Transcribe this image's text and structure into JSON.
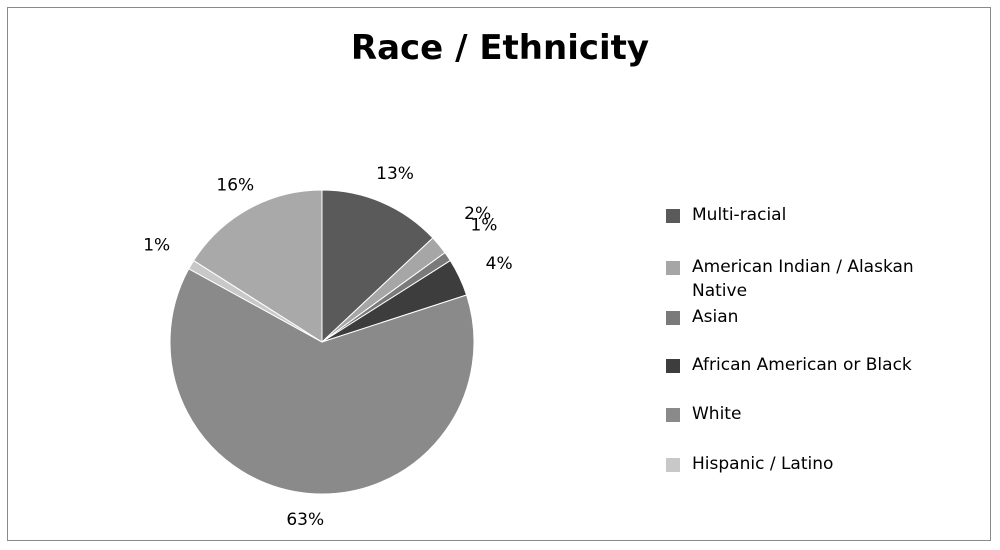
{
  "chart_data": {
    "type": "pie",
    "title": "Race / Ethnicity",
    "slices": [
      {
        "name": "Multi-racial",
        "value": 13,
        "label": "13%",
        "color": "#5a5a5a"
      },
      {
        "name": "American Indian / Alaskan Native",
        "value": 2,
        "label": "2%",
        "color": "#a6a6a6"
      },
      {
        "name": "Asian",
        "value": 1,
        "label": "1%",
        "color": "#7a7a7a"
      },
      {
        "name": "African American or Black",
        "value": 4,
        "label": "4%",
        "color": "#3d3d3d"
      },
      {
        "name": "White",
        "value": 63,
        "label": "63%",
        "color": "#8a8a8a"
      },
      {
        "name": "Hispanic / Latino",
        "value": 1,
        "label": "1%",
        "color": "#c8c8c8"
      },
      {
        "name": "",
        "value": 16,
        "label": "16%",
        "color": "#a9a9a9"
      }
    ],
    "legend_placement": "right",
    "legend": [
      {
        "label": "Multi-racial",
        "color": "#5a5a5a"
      },
      {
        "label": "American Indian / Alaskan Native",
        "color": "#a6a6a6"
      },
      {
        "label": "Asian",
        "color": "#7a7a7a"
      },
      {
        "label": "African American or Black",
        "color": "#3d3d3d"
      },
      {
        "label": "White",
        "color": "#8a8a8a"
      },
      {
        "label": "Hispanic / Latino",
        "color": "#c8c8c8"
      }
    ]
  }
}
